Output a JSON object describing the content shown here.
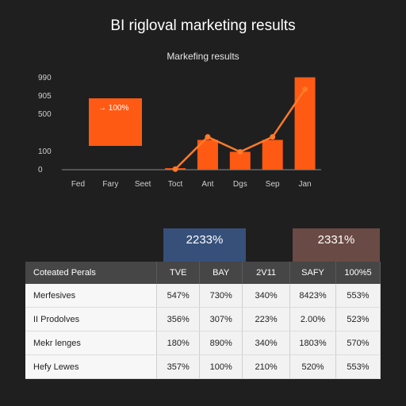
{
  "title": "BI rigloval marketing results",
  "chart_data": {
    "type": "bar",
    "subtitle": "Markefing results",
    "categories": [
      "Fed",
      "Fary",
      "Seet",
      "Toct",
      "Ant",
      "Dgs",
      "Sep",
      "Jan"
    ],
    "values": [
      0,
      0,
      0,
      5,
      100,
      60,
      100,
      310
    ],
    "line": {
      "values": [
        0,
        0,
        0,
        2,
        110,
        60,
        110,
        270
      ]
    },
    "y_ticks": [
      "990",
      "905",
      "500",
      "100",
      "0"
    ],
    "ylim": [
      0,
      330
    ],
    "annotation": "→ 100%",
    "bar_color": "#ff5a14",
    "line_color": "#ff7a2a"
  },
  "kpis": [
    {
      "value": "2233%",
      "color": "#36507a"
    },
    {
      "value": "2331%",
      "color": "#6a4a44"
    }
  ],
  "table": {
    "headers": [
      "Coteated Perals",
      "TVE",
      "BAY",
      "2V11",
      "SAFY",
      "100%5"
    ],
    "rows": [
      [
        "Merfesives",
        "547%",
        "730%",
        "340%",
        "8423%",
        "553%"
      ],
      [
        "II Prodolves",
        "356%",
        "307%",
        "223%",
        "2.00%",
        "523%"
      ],
      [
        "Mekr lenges",
        "180%",
        "890%",
        "340%",
        "1803%",
        "570%"
      ],
      [
        "Hefy Lewes",
        "357%",
        "100%",
        "210%",
        "520%",
        "553%"
      ]
    ]
  }
}
